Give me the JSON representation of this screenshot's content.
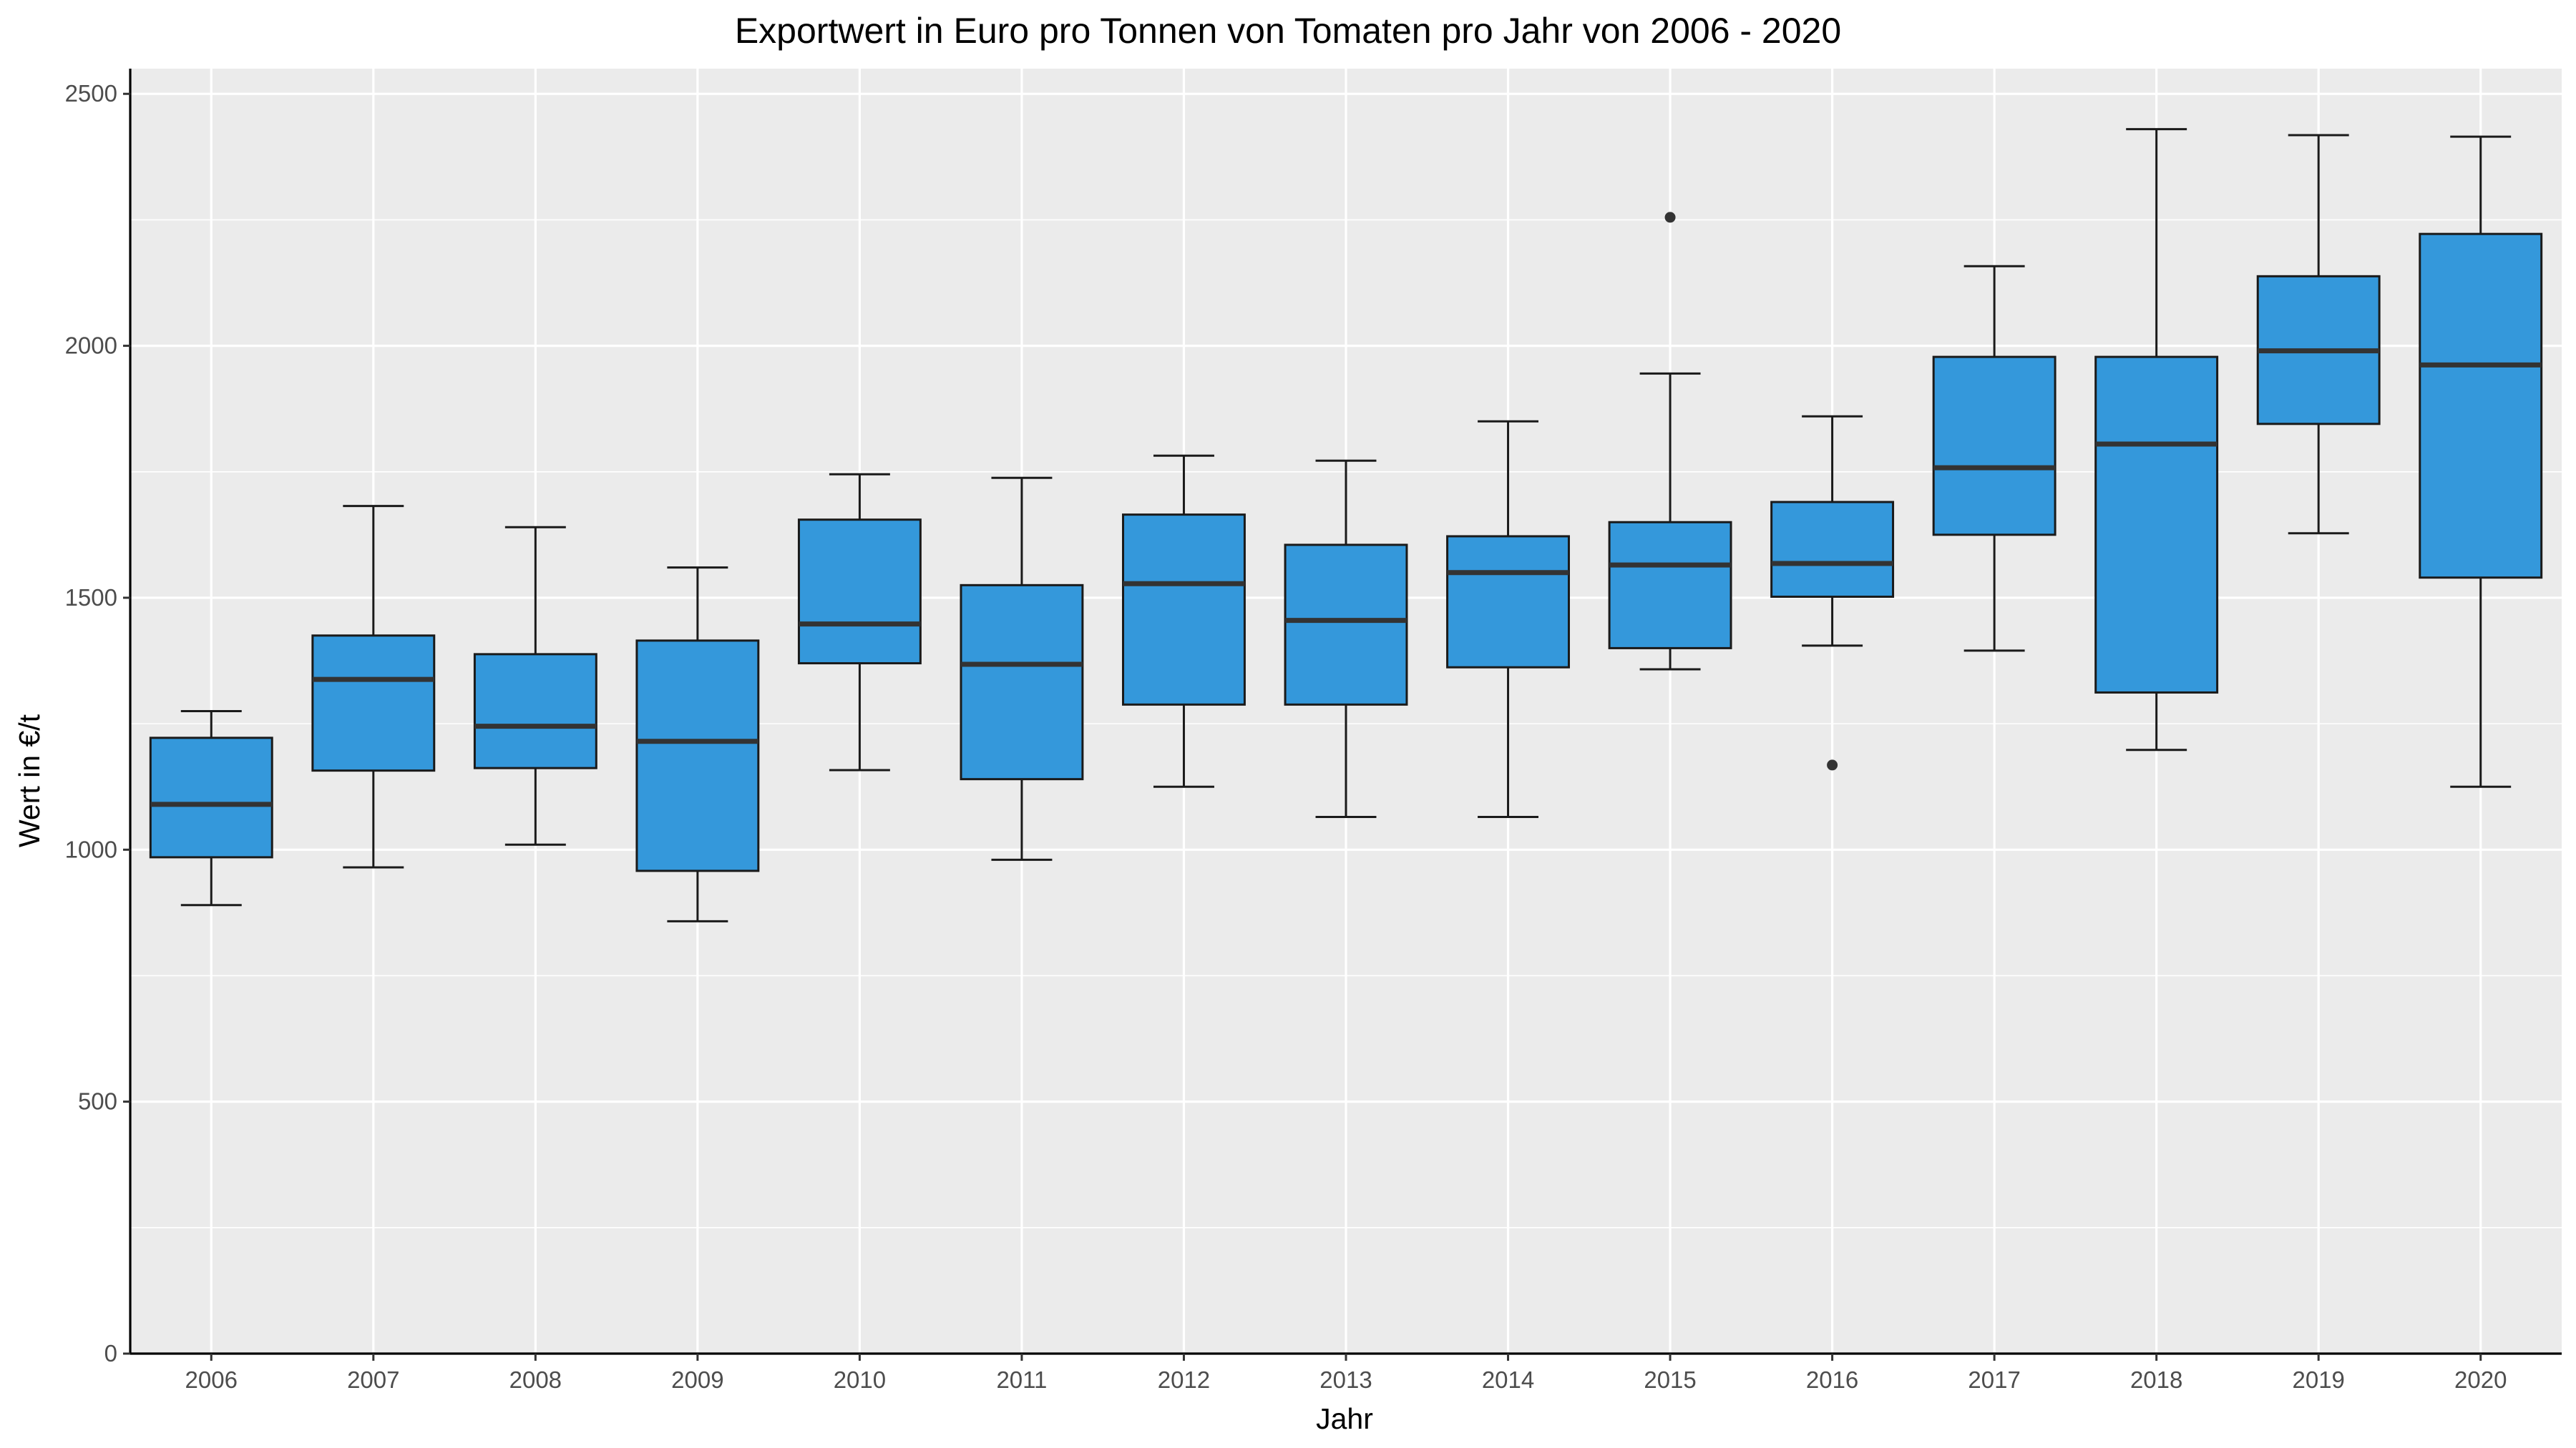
{
  "chart_data": {
    "type": "boxplot",
    "title": "Exportwert in Euro pro Tonnen von Tomaten pro Jahr von 2006 - 2020",
    "xlabel": "Jahr",
    "ylabel": "Wert in €/t",
    "ylim": [
      0,
      2550
    ],
    "yticks": [
      0,
      500,
      1000,
      1500,
      2000,
      2500
    ],
    "grid": true,
    "legend": "none",
    "colors": {
      "box_fill": "#3498db",
      "box_stroke": "#1a1a1a",
      "panel_bg": "#ebebeb",
      "grid": "#ffffff",
      "median": "#333333"
    },
    "categories": [
      "2006",
      "2007",
      "2008",
      "2009",
      "2010",
      "2011",
      "2012",
      "2013",
      "2014",
      "2015",
      "2016",
      "2017",
      "2018",
      "2019",
      "2020"
    ],
    "boxes": [
      {
        "x": "2006",
        "min": 890,
        "q1": 985,
        "median": 1090,
        "q3": 1222,
        "max": 1275,
        "outliers": []
      },
      {
        "x": "2007",
        "min": 965,
        "q1": 1157,
        "median": 1338,
        "q3": 1425,
        "max": 1682,
        "outliers": []
      },
      {
        "x": "2008",
        "min": 1010,
        "q1": 1162,
        "median": 1245,
        "q3": 1388,
        "max": 1640,
        "outliers": []
      },
      {
        "x": "2009",
        "min": 858,
        "q1": 958,
        "median": 1215,
        "q3": 1415,
        "max": 1560,
        "outliers": []
      },
      {
        "x": "2010",
        "min": 1158,
        "q1": 1370,
        "median": 1448,
        "q3": 1655,
        "max": 1745,
        "outliers": []
      },
      {
        "x": "2011",
        "min": 980,
        "q1": 1140,
        "median": 1368,
        "q3": 1525,
        "max": 1738,
        "outliers": []
      },
      {
        "x": "2012",
        "min": 1125,
        "q1": 1288,
        "median": 1528,
        "q3": 1665,
        "max": 1782,
        "outliers": []
      },
      {
        "x": "2013",
        "min": 1065,
        "q1": 1288,
        "median": 1455,
        "q3": 1605,
        "max": 1772,
        "outliers": []
      },
      {
        "x": "2014",
        "min": 1065,
        "q1": 1362,
        "median": 1550,
        "q3": 1622,
        "max": 1850,
        "outliers": []
      },
      {
        "x": "2015",
        "min": 1358,
        "q1": 1400,
        "median": 1565,
        "q3": 1650,
        "max": 1945,
        "outliers": [
          2255
        ]
      },
      {
        "x": "2016",
        "min": 1405,
        "q1": 1502,
        "median": 1568,
        "q3": 1690,
        "max": 1860,
        "outliers": [
          1168
        ]
      },
      {
        "x": "2017",
        "min": 1395,
        "q1": 1625,
        "median": 1758,
        "q3": 1978,
        "max": 2158,
        "outliers": []
      },
      {
        "x": "2018",
        "min": 1198,
        "q1": 1312,
        "median": 1805,
        "q3": 1978,
        "max": 2430,
        "outliers": []
      },
      {
        "x": "2019",
        "min": 1628,
        "q1": 1845,
        "median": 1990,
        "q3": 2138,
        "max": 2418,
        "outliers": []
      },
      {
        "x": "2020",
        "min": 1125,
        "q1": 1540,
        "median": 1962,
        "q3": 2222,
        "max": 2415,
        "outliers": []
      }
    ]
  }
}
